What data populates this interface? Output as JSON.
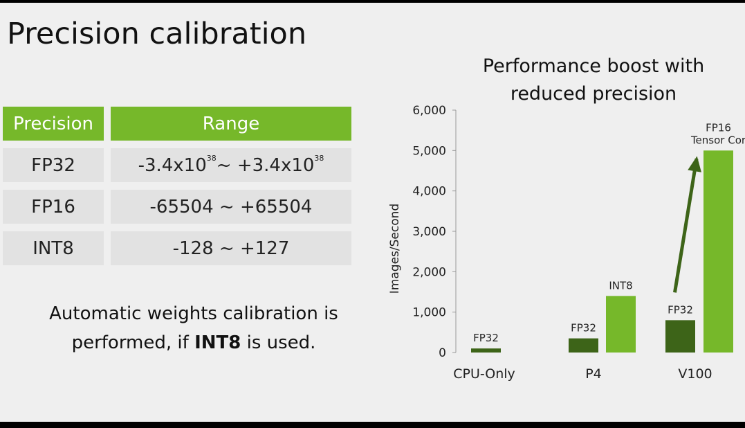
{
  "slide": {
    "title": "Precision calibration",
    "table": {
      "headers": [
        "Precision",
        "Range"
      ],
      "rows": [
        {
          "precision": "FP32",
          "range_lo": "-3.4x10",
          "range_lo_exp": "38",
          "range_mid": " ~ +3.4x10",
          "range_hi_exp": "38"
        },
        {
          "precision": "FP16",
          "range": "-65504 ~ +65504"
        },
        {
          "precision": "INT8",
          "range": "-128 ~ +127"
        }
      ]
    },
    "note": {
      "line1": "Automatic weights calibration is",
      "line2_prefix": "performed, if ",
      "line2_bold": "INT8",
      "line2_suffix": " is used."
    }
  },
  "colors": {
    "accent": "#76b82a",
    "dark_green": "#3d6418",
    "bright_green": "#76b82a"
  },
  "chart_data": {
    "type": "bar",
    "title_line1": "Performance boost with",
    "title_line2": "reduced precision",
    "ylabel": "Images/Second",
    "xlabel": "",
    "ylim": [
      0,
      6000
    ],
    "yticks": [
      "0",
      "1,000",
      "2,000",
      "3,000",
      "4,000",
      "5,000",
      "6,000"
    ],
    "categories": [
      "CPU-Only",
      "P4",
      "V100"
    ],
    "bars": [
      {
        "category": "CPU-Only",
        "label": "FP32",
        "value": 100,
        "shade": "dark"
      },
      {
        "category": "P4",
        "label": "FP32",
        "value": 350,
        "shade": "dark"
      },
      {
        "category": "P4",
        "label": "INT8",
        "value": 1400,
        "shade": "bright"
      },
      {
        "category": "V100",
        "label": "FP32",
        "value": 800,
        "shade": "dark"
      },
      {
        "category": "V100",
        "label": "FP16",
        "label2": "Tensor Cor",
        "value": 5000,
        "shade": "bright"
      }
    ],
    "annotation": "arrow from V100 FP32 to FP16",
    "grid": false
  }
}
